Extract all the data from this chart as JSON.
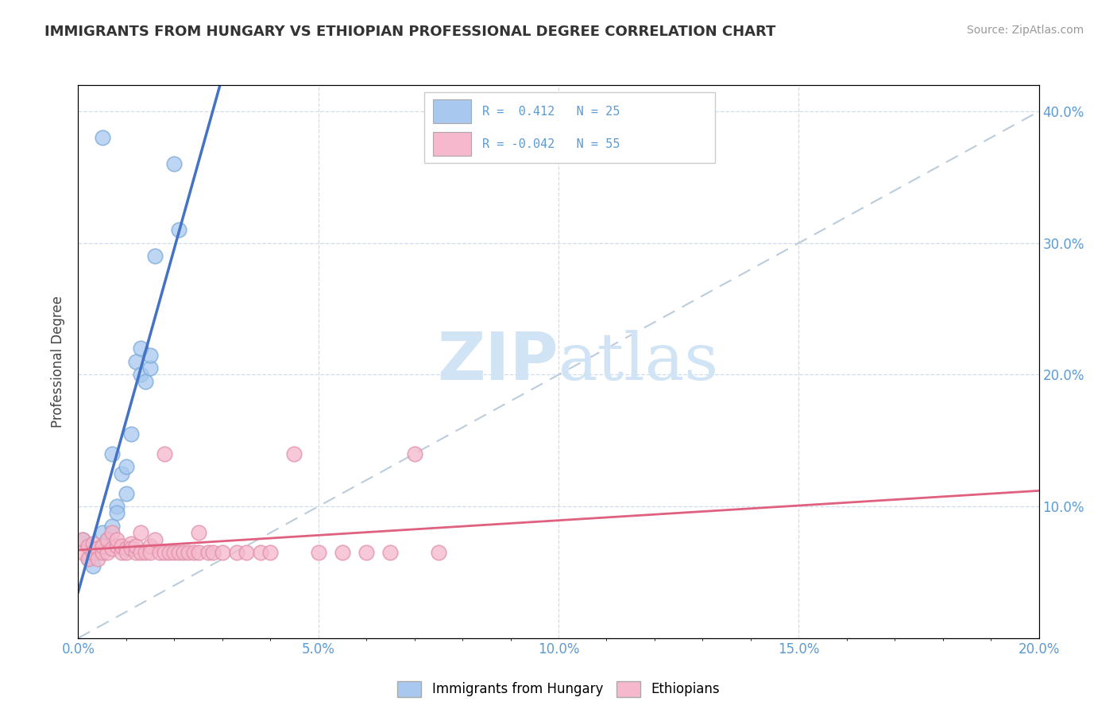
{
  "title": "IMMIGRANTS FROM HUNGARY VS ETHIOPIAN PROFESSIONAL DEGREE CORRELATION CHART",
  "source": "Source: ZipAtlas.com",
  "ylabel": "Professional Degree",
  "xlim": [
    0.0,
    0.2
  ],
  "ylim": [
    0.0,
    0.42
  ],
  "blue_color": "#A8C8F0",
  "pink_color": "#F5B8CC",
  "blue_line_color": "#4472C4",
  "pink_line_color": "#E06080",
  "dashed_line_color": "#BBCCDD",
  "watermark_color": "#D0E4F5",
  "blue_points": [
    [
      0.001,
      0.075
    ],
    [
      0.002,
      0.06
    ],
    [
      0.003,
      0.055
    ],
    [
      0.004,
      0.065
    ],
    [
      0.005,
      0.07
    ],
    [
      0.005,
      0.08
    ],
    [
      0.006,
      0.075
    ],
    [
      0.007,
      0.085
    ],
    [
      0.007,
      0.14
    ],
    [
      0.008,
      0.1
    ],
    [
      0.008,
      0.095
    ],
    [
      0.009,
      0.125
    ],
    [
      0.01,
      0.11
    ],
    [
      0.01,
      0.13
    ],
    [
      0.011,
      0.155
    ],
    [
      0.012,
      0.21
    ],
    [
      0.013,
      0.2
    ],
    [
      0.013,
      0.22
    ],
    [
      0.014,
      0.195
    ],
    [
      0.015,
      0.205
    ],
    [
      0.015,
      0.215
    ],
    [
      0.016,
      0.29
    ],
    [
      0.02,
      0.36
    ],
    [
      0.021,
      0.31
    ],
    [
      0.005,
      0.38
    ]
  ],
  "pink_points": [
    [
      0.001,
      0.075
    ],
    [
      0.001,
      0.065
    ],
    [
      0.002,
      0.07
    ],
    [
      0.002,
      0.06
    ],
    [
      0.003,
      0.072
    ],
    [
      0.003,
      0.065
    ],
    [
      0.004,
      0.068
    ],
    [
      0.004,
      0.06
    ],
    [
      0.005,
      0.065
    ],
    [
      0.005,
      0.07
    ],
    [
      0.006,
      0.075
    ],
    [
      0.006,
      0.065
    ],
    [
      0.007,
      0.068
    ],
    [
      0.007,
      0.08
    ],
    [
      0.008,
      0.07
    ],
    [
      0.008,
      0.075
    ],
    [
      0.009,
      0.065
    ],
    [
      0.009,
      0.07
    ],
    [
      0.01,
      0.068
    ],
    [
      0.01,
      0.065
    ],
    [
      0.011,
      0.072
    ],
    [
      0.011,
      0.068
    ],
    [
      0.012,
      0.065
    ],
    [
      0.012,
      0.07
    ],
    [
      0.013,
      0.08
    ],
    [
      0.013,
      0.065
    ],
    [
      0.014,
      0.065
    ],
    [
      0.015,
      0.07
    ],
    [
      0.015,
      0.065
    ],
    [
      0.016,
      0.075
    ],
    [
      0.017,
      0.065
    ],
    [
      0.018,
      0.065
    ],
    [
      0.018,
      0.14
    ],
    [
      0.019,
      0.065
    ],
    [
      0.02,
      0.065
    ],
    [
      0.021,
      0.065
    ],
    [
      0.022,
      0.065
    ],
    [
      0.023,
      0.065
    ],
    [
      0.024,
      0.065
    ],
    [
      0.025,
      0.08
    ],
    [
      0.025,
      0.065
    ],
    [
      0.027,
      0.065
    ],
    [
      0.028,
      0.065
    ],
    [
      0.03,
      0.065
    ],
    [
      0.033,
      0.065
    ],
    [
      0.035,
      0.065
    ],
    [
      0.038,
      0.065
    ],
    [
      0.04,
      0.065
    ],
    [
      0.045,
      0.14
    ],
    [
      0.05,
      0.065
    ],
    [
      0.055,
      0.065
    ],
    [
      0.06,
      0.065
    ],
    [
      0.065,
      0.065
    ],
    [
      0.07,
      0.14
    ],
    [
      0.075,
      0.065
    ]
  ],
  "legend_r1_text": "R =  0.412   N = 25",
  "legend_r2_text": "R = -0.042   N = 55",
  "legend_label1": "Immigrants from Hungary",
  "legend_label2": "Ethiopians"
}
